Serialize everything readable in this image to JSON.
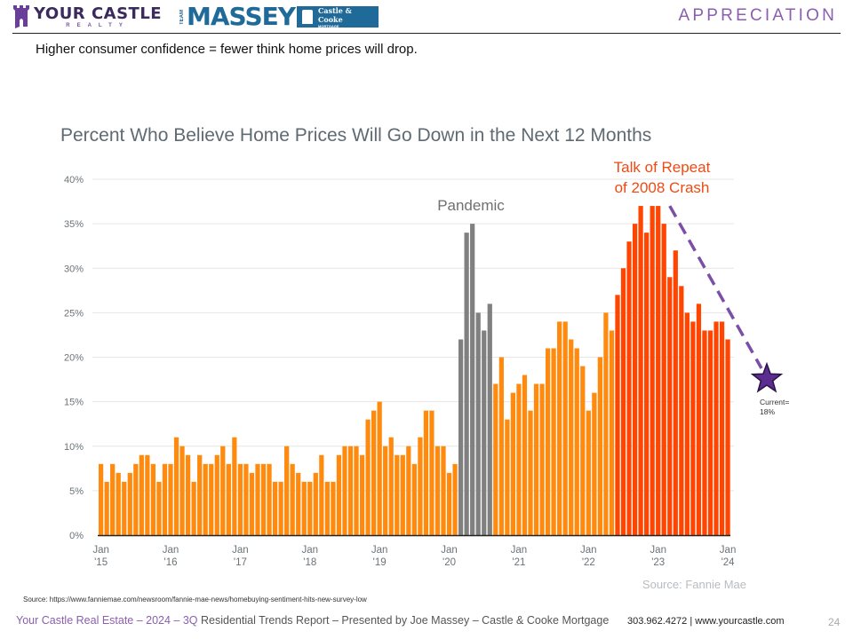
{
  "header": {
    "logo_left": {
      "main": "YOUR CASTLE",
      "sub": "REALTY"
    },
    "logo_right": {
      "team": "TEAM",
      "name": "MASSEY",
      "partner_line1": "Castle & Cooke",
      "partner_line2": "MORTGAGE"
    },
    "section_title": "APPRECIATION"
  },
  "subtitle": "Higher consumer confidence = fewer think home prices will drop.",
  "chart_data": {
    "type": "bar",
    "title": "Percent Who Believe Home Prices Will Go Down in the Next 12 Months",
    "xlabel": "",
    "ylabel": "",
    "ylim": [
      0,
      40
    ],
    "yticks": [
      "0%",
      "5%",
      "10%",
      "15%",
      "20%",
      "25%",
      "30%",
      "35%",
      "40%"
    ],
    "ytick_values": [
      0,
      5,
      10,
      15,
      20,
      25,
      30,
      35,
      40
    ],
    "grid": true,
    "x_start": "Jan 2015",
    "x_end": "Jan 2024",
    "frequency": "monthly",
    "xtick_labels": [
      {
        "index": 0,
        "line1": "Jan",
        "line2": "'15"
      },
      {
        "index": 12,
        "line1": "Jan",
        "line2": "'16"
      },
      {
        "index": 24,
        "line1": "Jan",
        "line2": "'17"
      },
      {
        "index": 36,
        "line1": "Jan",
        "line2": "'18"
      },
      {
        "index": 48,
        "line1": "Jan",
        "line2": "'19"
      },
      {
        "index": 60,
        "line1": "Jan",
        "line2": "'20"
      },
      {
        "index": 72,
        "line1": "Jan",
        "line2": "'21"
      },
      {
        "index": 84,
        "line1": "Jan",
        "line2": "'22"
      },
      {
        "index": 96,
        "line1": "Jan",
        "line2": "'23"
      },
      {
        "index": 108,
        "line1": "Jan",
        "line2": "'24"
      }
    ],
    "values": [
      8,
      6,
      8,
      7,
      6,
      7,
      8,
      9,
      9,
      8,
      6,
      8,
      8,
      11,
      10,
      9,
      6,
      9,
      8,
      8,
      9,
      10,
      8,
      11,
      8,
      8,
      7,
      8,
      8,
      8,
      6,
      6,
      10,
      8,
      7,
      6,
      6,
      7,
      9,
      6,
      6,
      9,
      10,
      10,
      10,
      9,
      13,
      14,
      15,
      10,
      11,
      9,
      9,
      10,
      8,
      11,
      14,
      14,
      10,
      10,
      7,
      8,
      22,
      34,
      35,
      25,
      23,
      26,
      17,
      20,
      13,
      16,
      17,
      18,
      14,
      17,
      17,
      21,
      21,
      24,
      24,
      22,
      21,
      19,
      14,
      16,
      20,
      25,
      23,
      27,
      30,
      33,
      35,
      37,
      34,
      37,
      37,
      35,
      29,
      32,
      28,
      25,
      24,
      26,
      23,
      23,
      24,
      24,
      22
    ],
    "segments": [
      {
        "name": "normal",
        "from": 0,
        "to": 61,
        "color": "#ff8a0d"
      },
      {
        "name": "Pandemic",
        "from": 62,
        "to": 67,
        "color": "#808080"
      },
      {
        "name": "normal",
        "from": 68,
        "to": 88,
        "color": "#ff8a0d"
      },
      {
        "name": "Talk of Repeat of 2008 Crash",
        "from": 89,
        "to": 108,
        "color": "#ff4500"
      }
    ],
    "annotations": {
      "pandemic": "Pandemic",
      "crash_line1": "Talk of Repeat",
      "crash_line2": "of 2008 Crash",
      "current_line1": "Current=",
      "current_line2": "18%",
      "current_value": 18,
      "trend_start_index": 98,
      "trend_start_value": 37,
      "source": "Source: Fannie Mae"
    },
    "colors": {
      "orange": "#ff8a0d",
      "grey": "#808080",
      "red": "#ff4500",
      "trend": "#7b4fa8",
      "star": "#5b2d90"
    }
  },
  "footer": {
    "source_note": "Source:  https://www.fanniemae.com/newsroom/fannie-mae-news/homebuying-sentiment-hits-new-survey-low",
    "report_part1": "Your Castle Real Estate – 2024 – 3Q",
    "report_part2": " Residential Trends Report – Presented by Joe Massey – Castle & Cooke Mortgage",
    "contact": "303.962.4272 | www.yourcastle.com",
    "page_number": "24"
  }
}
